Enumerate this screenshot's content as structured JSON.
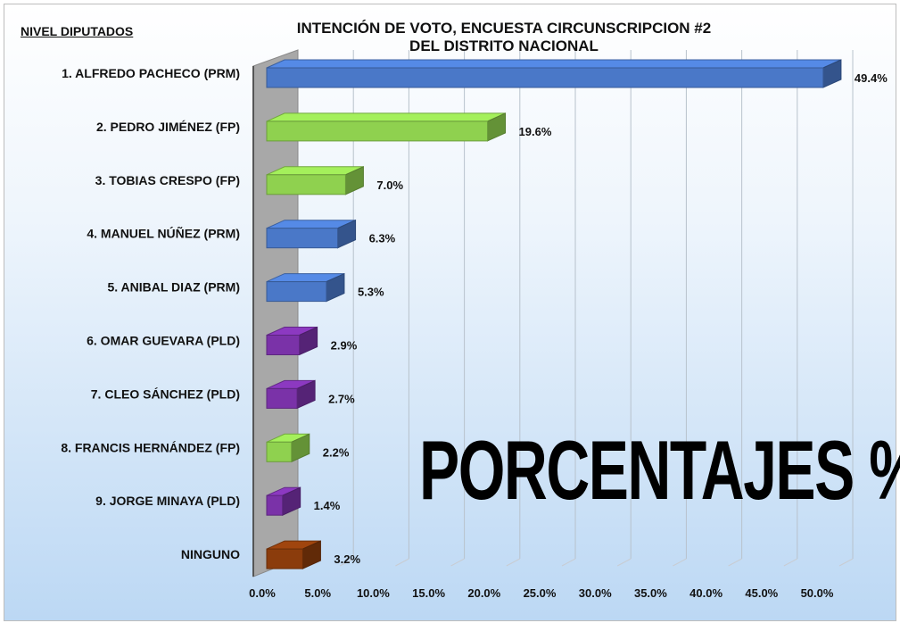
{
  "chart_data": {
    "type": "bar",
    "orientation": "horizontal",
    "style": "3d",
    "title": "INTENCIÓN DE VOTO, ENCUESTA CIRCUNSCRIPCION #2 DEL DISTRITO NACIONAL",
    "title_lines": [
      "INTENCIÓN DE VOTO, ENCUESTA CIRCUNSCRIPCION #2",
      "DEL DISTRITO NACIONAL"
    ],
    "subtitle": "NIVEL DIPUTADOS",
    "annotation": "PORCENTAJES %",
    "categories": [
      "1. ALFREDO PACHECO (PRM)",
      "2. PEDRO JIMÉNEZ (FP)",
      "3. TOBIAS CRESPO (FP)",
      "4. MANUEL NÚÑEZ (PRM)",
      "5. ANIBAL DIAZ (PRM)",
      "6. OMAR GUEVARA (PLD)",
      "7. CLEO SÁNCHEZ (PLD)",
      "8. FRANCIS HERNÁNDEZ (FP)",
      "9. JORGE MINAYA (PLD)",
      "NINGUNO"
    ],
    "values": [
      49.4,
      19.6,
      7.0,
      6.3,
      5.3,
      2.9,
      2.7,
      2.2,
      1.4,
      3.2
    ],
    "data_labels": [
      "49.4%",
      "19.6%",
      "7.0%",
      "6.3%",
      "5.3%",
      "2.9%",
      "2.7%",
      "2.2%",
      "1.4%",
      "3.2%"
    ],
    "colors": [
      "#4a78c8",
      "#8fd14f",
      "#8fd14f",
      "#4a78c8",
      "#4a78c8",
      "#7a32a8",
      "#7a32a8",
      "#8fd14f",
      "#7a32a8",
      "#8b3c0c"
    ],
    "xlim": [
      0,
      50
    ],
    "x_ticks": [
      "0.0%",
      "5.0%",
      "10.0%",
      "15.0%",
      "20.0%",
      "25.0%",
      "30.0%",
      "35.0%",
      "40.0%",
      "45.0%",
      "50.0%"
    ],
    "grid": true,
    "legend": "none"
  }
}
